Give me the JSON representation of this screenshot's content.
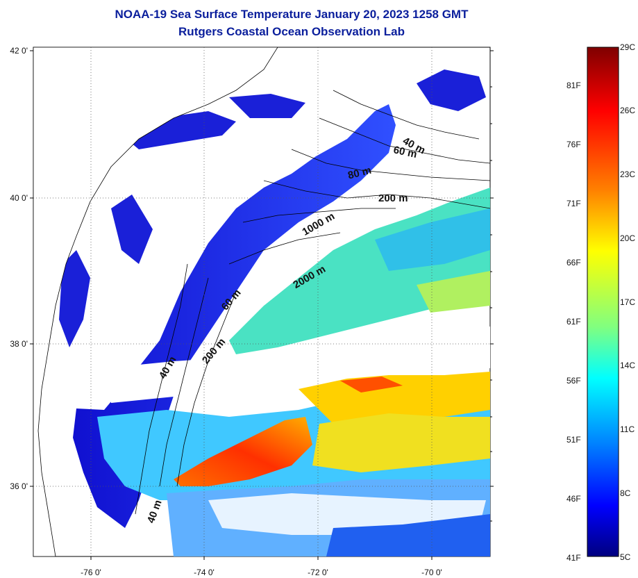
{
  "title": {
    "line1": "NOAA-19 Sea Surface Temperature January 20, 2023 1258 GMT",
    "line2": "Rutgers Coastal Ocean Observation Lab"
  },
  "axes": {
    "lat_labels": [
      "42 0'",
      "40 0'",
      "38 0'",
      "36 0'"
    ],
    "lon_labels": [
      "-76 0'",
      "-74 0'",
      "-72 0'",
      "-70 0'"
    ]
  },
  "contours": [
    "40 m",
    "60 m",
    "80 m",
    "200 m",
    "1000 m",
    "2000 m",
    "60 m",
    "200 m",
    "40 m",
    "40 m"
  ],
  "colorbar": {
    "fahrenheit": [
      "81F",
      "76F",
      "71F",
      "66F",
      "61F",
      "56F",
      "51F",
      "46F",
      "41F"
    ],
    "celsius": [
      "29C",
      "26C",
      "23C",
      "20C",
      "17C",
      "14C",
      "11C",
      "8C",
      "5C"
    ],
    "colors": [
      "#7f0000",
      "#ff0000",
      "#ff8000",
      "#ffff00",
      "#80ff80",
      "#00ffff",
      "#0080ff",
      "#0000ff",
      "#00007f"
    ]
  }
}
